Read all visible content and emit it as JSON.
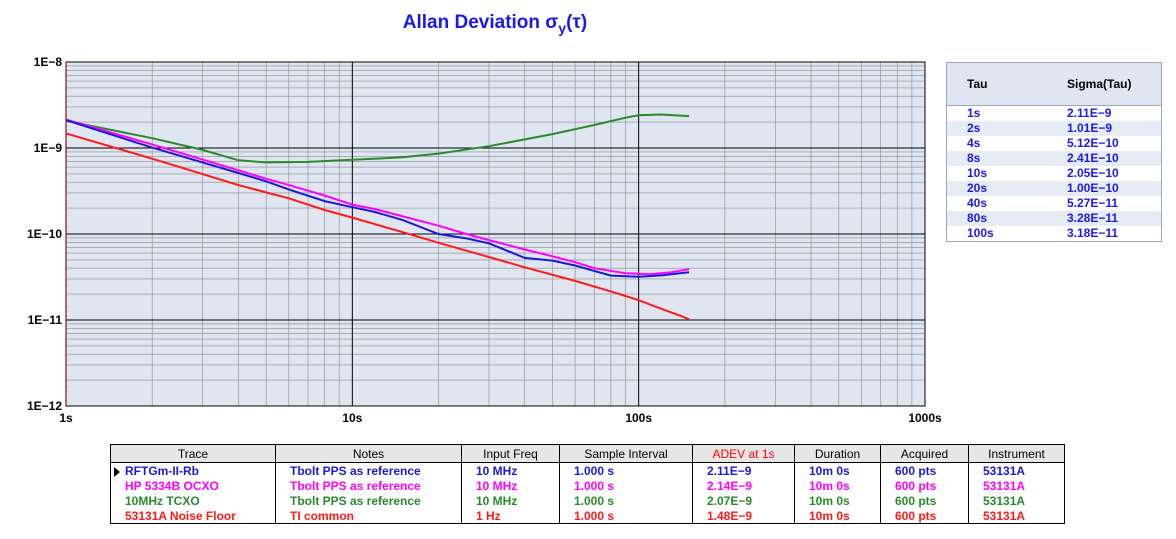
{
  "chart_data": {
    "type": "line",
    "title_main": "Allan Deviation σ",
    "title_sub": "y",
    "title_tail": "(τ)",
    "xscale": "log",
    "yscale": "log",
    "xlim": [
      1,
      1000
    ],
    "ylim": [
      1e-12,
      1e-08
    ],
    "x_ticks": [
      {
        "v": 1,
        "label": "1s"
      },
      {
        "v": 10,
        "label": "10s"
      },
      {
        "v": 100,
        "label": "100s"
      },
      {
        "v": 1000,
        "label": "1000s"
      }
    ],
    "y_ticks": [
      {
        "v": 1e-08,
        "label": "1E−8"
      },
      {
        "v": 1e-09,
        "label": "1E−9"
      },
      {
        "v": 1e-10,
        "label": "1E−10"
      },
      {
        "v": 1e-11,
        "label": "1E−11"
      },
      {
        "v": 1e-12,
        "label": "1E−12"
      }
    ],
    "grid": true,
    "series": [
      {
        "color": "#2a8a2a",
        "points": [
          [
            1,
            2.07e-09
          ],
          [
            2,
            1.3e-09
          ],
          [
            3,
            9.5e-10
          ],
          [
            4,
            7.2e-10
          ],
          [
            5,
            6.8e-10
          ],
          [
            7,
            6.9e-10
          ],
          [
            10,
            7.3e-10
          ],
          [
            15,
            7.8e-10
          ],
          [
            20,
            8.6e-10
          ],
          [
            30,
            1.05e-09
          ],
          [
            50,
            1.45e-09
          ],
          [
            70,
            1.85e-09
          ],
          [
            90,
            2.25e-09
          ],
          [
            100,
            2.4e-09
          ],
          [
            120,
            2.45e-09
          ],
          [
            150,
            2.35e-09
          ]
        ]
      },
      {
        "color": "#ff00ff",
        "points": [
          [
            1,
            2.14e-09
          ],
          [
            2,
            1.1e-09
          ],
          [
            4,
            5.5e-10
          ],
          [
            5,
            4.4e-10
          ],
          [
            6,
            3.7e-10
          ],
          [
            8,
            2.8e-10
          ],
          [
            10,
            2.2e-10
          ],
          [
            12,
            1.95e-10
          ],
          [
            15,
            1.6e-10
          ],
          [
            20,
            1.25e-10
          ],
          [
            25,
            1e-10
          ],
          [
            30,
            8.5e-11
          ],
          [
            40,
            6.6e-11
          ],
          [
            50,
            5.5e-11
          ],
          [
            60,
            4.7e-11
          ],
          [
            70,
            4e-11
          ],
          [
            90,
            3.5e-11
          ],
          [
            110,
            3.4e-11
          ],
          [
            130,
            3.6e-11
          ],
          [
            150,
            3.9e-11
          ]
        ]
      },
      {
        "color": "#1a1ad6",
        "points": [
          [
            1,
            2.11e-09
          ],
          [
            2,
            1.01e-09
          ],
          [
            4,
            5.12e-10
          ],
          [
            5,
            4.1e-10
          ],
          [
            6,
            3.3e-10
          ],
          [
            8,
            2.41e-10
          ],
          [
            10,
            2.05e-10
          ],
          [
            12,
            1.8e-10
          ],
          [
            15,
            1.45e-10
          ],
          [
            20,
            1e-10
          ],
          [
            25,
            8.9e-11
          ],
          [
            30,
            7.8e-11
          ],
          [
            40,
            5.27e-11
          ],
          [
            50,
            4.9e-11
          ],
          [
            60,
            4.3e-11
          ],
          [
            80,
            3.28e-11
          ],
          [
            100,
            3.18e-11
          ],
          [
            120,
            3.3e-11
          ],
          [
            150,
            3.6e-11
          ]
        ]
      },
      {
        "color": "#ff1a1a",
        "points": [
          [
            1,
            1.48e-09
          ],
          [
            2,
            7.5e-10
          ],
          [
            4,
            3.7e-10
          ],
          [
            6,
            2.6e-10
          ],
          [
            8,
            1.9e-10
          ],
          [
            10,
            1.55e-10
          ],
          [
            15,
            1.05e-10
          ],
          [
            20,
            7.9e-11
          ],
          [
            30,
            5.4e-11
          ],
          [
            40,
            4.1e-11
          ],
          [
            60,
            2.85e-11
          ],
          [
            80,
            2.15e-11
          ],
          [
            100,
            1.7e-11
          ],
          [
            120,
            1.35e-11
          ],
          [
            140,
            1.12e-11
          ],
          [
            150,
            1.02e-11
          ]
        ]
      }
    ]
  },
  "tau_table": {
    "header_tau": "Tau",
    "header_sigma": "Sigma(Tau)",
    "rows": [
      {
        "tau": "1s",
        "sigma": "2.11E−9"
      },
      {
        "tau": "2s",
        "sigma": "1.01E−9"
      },
      {
        "tau": "4s",
        "sigma": "5.12E−10"
      },
      {
        "tau": "8s",
        "sigma": "2.41E−10"
      },
      {
        "tau": "10s",
        "sigma": "2.05E−10"
      },
      {
        "tau": "20s",
        "sigma": "1.00E−10"
      },
      {
        "tau": "40s",
        "sigma": "5.27E−11"
      },
      {
        "tau": "80s",
        "sigma": "3.28E−11"
      },
      {
        "tau": "100s",
        "sigma": "3.18E−11"
      }
    ]
  },
  "legend": {
    "headers": [
      "Trace",
      "Notes",
      "Input Freq",
      "Sample Interval",
      "ADEV at 1s",
      "Duration",
      "Acquired",
      "Instrument"
    ],
    "rows": [
      {
        "color": "#1a1ad6",
        "cells": [
          "RFTGm-II-Rb",
          "Tbolt PPS as reference",
          "10 MHz",
          "1.000 s",
          "2.11E−9",
          "10m 0s",
          "600 pts",
          "53131A"
        ]
      },
      {
        "color": "#ff00ff",
        "cells": [
          "HP 5334B OCXO",
          "Tbolt PPS as reference",
          "10 MHz",
          "1.000 s",
          "2.14E−9",
          "10m 0s",
          "600 pts",
          "53131A"
        ]
      },
      {
        "color": "#2a8a2a",
        "cells": [
          "10MHz TCXO",
          "Tbolt PPS as reference",
          "10 MHz",
          "1.000 s",
          "2.07E−9",
          "10m 0s",
          "600 pts",
          "53131A"
        ]
      },
      {
        "color": "#ff1a1a",
        "cells": [
          "53131A Noise Floor",
          "TI common",
          "1 Hz",
          "1.000 s",
          "1.48E−9",
          "10m 0s",
          "600 pts",
          "53131A"
        ]
      }
    ]
  },
  "colors": {
    "title": "#1a1ae6",
    "adev_header": "#ff0000",
    "plot_bg": "#dfe6f2"
  }
}
